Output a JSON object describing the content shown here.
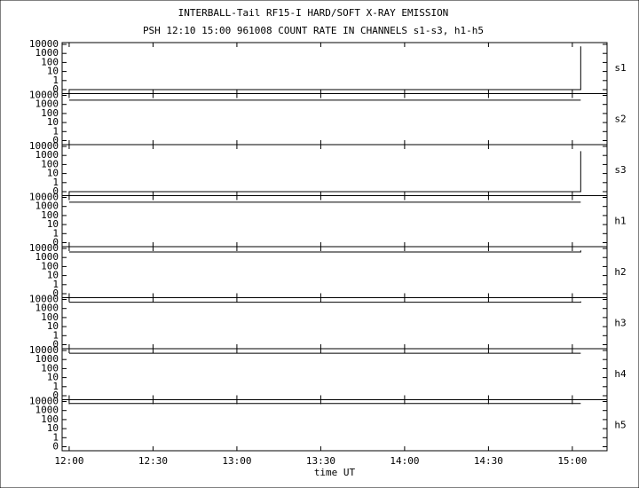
{
  "chart_data": {
    "type": "line",
    "title": "INTERBALL-Tail RF15-I HARD/SOFT X-RAY EMISSION",
    "subtitle": "PSH 12:10 15:00 961008  COUNT RATE IN CHANNELS s1-s3, h1-h5",
    "xlabel": "time UT",
    "x": [
      12.0,
      15.05,
      15.05
    ],
    "series": [
      {
        "name": "s1",
        "color": "#000000",
        "values": [
          0,
          0,
          6000
        ]
      },
      {
        "name": "s2",
        "color": "#000000",
        "values": [
          3000,
          3000,
          3000
        ]
      },
      {
        "name": "s3",
        "color": "#000000",
        "values": [
          0,
          0,
          3000
        ]
      },
      {
        "name": "h1",
        "color": "#000000",
        "values": [
          3000,
          3000,
          3000
        ]
      },
      {
        "name": "h2",
        "color": "#000000",
        "values": [
          4000,
          4000,
          6000
        ]
      },
      {
        "name": "h3",
        "color": "#000000",
        "values": [
          5000,
          5000,
          6000
        ]
      },
      {
        "name": "h4",
        "color": "#000000",
        "values": [
          5000,
          5000,
          5000
        ]
      },
      {
        "name": "h5",
        "color": "#000000",
        "values": [
          6000,
          6000,
          6000
        ]
      }
    ],
    "xlim": [
      11.958,
      15.207
    ],
    "xticks": [
      {
        "value": 12.0,
        "label": "12:00"
      },
      {
        "value": 12.5,
        "label": "12:30"
      },
      {
        "value": 13.0,
        "label": "13:00"
      },
      {
        "value": 13.5,
        "label": "13:30"
      },
      {
        "value": 14.0,
        "label": "14:00"
      },
      {
        "value": 14.5,
        "label": "14:30"
      },
      {
        "value": 15.0,
        "label": "15:00"
      }
    ],
    "ylim": [
      0,
      10000
    ],
    "yticks": [
      0,
      1,
      10,
      100,
      1000,
      10000
    ],
    "yscale": "log-with-zero"
  }
}
